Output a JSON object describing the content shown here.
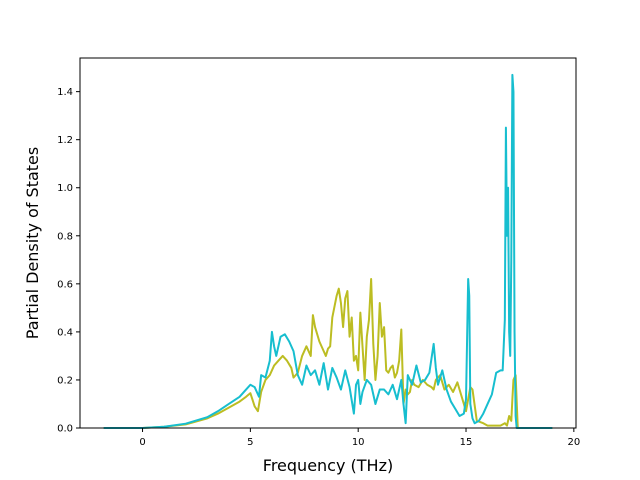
{
  "chart_data": {
    "type": "line",
    "title": "",
    "xlabel": "Frequency (THz)",
    "ylabel": "Partial Density of States",
    "xlim": [
      -2.9,
      20.1
    ],
    "ylim": [
      0.0,
      1.54
    ],
    "xticks": [
      0,
      5,
      10,
      15,
      20
    ],
    "yticks": [
      0.0,
      0.2,
      0.4,
      0.6,
      0.8,
      1.0,
      1.2,
      1.4
    ],
    "grid": false,
    "legend": "none",
    "series": [
      {
        "color": "#bcbd22",
        "x": [
          -1.8,
          0.0,
          1.0,
          2.0,
          3.0,
          3.5,
          4.0,
          4.5,
          4.8,
          5.0,
          5.2,
          5.35,
          5.5,
          5.7,
          5.9,
          6.1,
          6.3,
          6.5,
          6.7,
          6.9,
          7.0,
          7.2,
          7.4,
          7.6,
          7.8,
          7.9,
          8.0,
          8.2,
          8.4,
          8.5,
          8.6,
          8.7,
          8.8,
          9.0,
          9.1,
          9.2,
          9.3,
          9.4,
          9.5,
          9.6,
          9.7,
          9.8,
          9.9,
          10.0,
          10.1,
          10.2,
          10.3,
          10.4,
          10.5,
          10.6,
          10.7,
          10.8,
          10.9,
          11.0,
          11.1,
          11.2,
          11.3,
          11.4,
          11.5,
          11.6,
          11.7,
          11.8,
          11.9,
          12.0,
          12.1,
          12.2,
          12.3,
          12.4,
          12.5,
          12.6,
          12.8,
          13.0,
          13.2,
          13.4,
          13.5,
          13.6,
          13.8,
          14.0,
          14.2,
          14.4,
          14.6,
          14.8,
          15.0,
          15.1,
          15.2,
          15.3,
          15.5,
          15.8,
          16.0,
          16.2,
          16.4,
          16.6,
          16.8,
          16.9,
          17.0,
          17.1,
          17.15,
          17.2,
          17.3,
          17.4,
          17.6,
          18.0,
          19.0
        ],
        "y": [
          0.0,
          0.0,
          0.005,
          0.015,
          0.04,
          0.06,
          0.085,
          0.11,
          0.13,
          0.145,
          0.09,
          0.07,
          0.15,
          0.2,
          0.22,
          0.26,
          0.28,
          0.3,
          0.28,
          0.25,
          0.21,
          0.23,
          0.3,
          0.34,
          0.3,
          0.47,
          0.42,
          0.36,
          0.32,
          0.3,
          0.33,
          0.34,
          0.46,
          0.55,
          0.58,
          0.52,
          0.42,
          0.54,
          0.57,
          0.38,
          0.46,
          0.28,
          0.3,
          0.24,
          0.48,
          0.34,
          0.2,
          0.38,
          0.45,
          0.62,
          0.35,
          0.2,
          0.3,
          0.52,
          0.38,
          0.42,
          0.24,
          0.23,
          0.25,
          0.26,
          0.21,
          0.23,
          0.28,
          0.41,
          0.1,
          0.16,
          0.14,
          0.15,
          0.2,
          0.18,
          0.17,
          0.2,
          0.18,
          0.17,
          0.16,
          0.2,
          0.22,
          0.16,
          0.18,
          0.15,
          0.19,
          0.13,
          0.07,
          0.12,
          0.17,
          0.16,
          0.03,
          0.02,
          0.01,
          0.01,
          0.01,
          0.01,
          0.02,
          0.01,
          0.05,
          0.03,
          0.12,
          0.2,
          0.22,
          0.0,
          0.0,
          0.0,
          0.0
        ]
      },
      {
        "color": "#17becf",
        "x": [
          -1.8,
          0.0,
          1.0,
          2.0,
          3.0,
          3.5,
          4.0,
          4.5,
          4.8,
          5.0,
          5.2,
          5.4,
          5.5,
          5.7,
          5.9,
          6.0,
          6.1,
          6.2,
          6.4,
          6.6,
          6.8,
          7.0,
          7.2,
          7.4,
          7.6,
          7.8,
          8.0,
          8.2,
          8.4,
          8.6,
          8.8,
          9.0,
          9.2,
          9.4,
          9.6,
          9.8,
          9.9,
          10.0,
          10.1,
          10.2,
          10.4,
          10.6,
          10.8,
          11.0,
          11.2,
          11.4,
          11.6,
          11.8,
          12.0,
          12.1,
          12.2,
          12.3,
          12.5,
          12.7,
          12.9,
          13.1,
          13.3,
          13.5,
          13.6,
          13.7,
          13.9,
          14.1,
          14.3,
          14.5,
          14.7,
          14.9,
          15.0,
          15.1,
          15.15,
          15.2,
          15.3,
          15.4,
          15.6,
          15.8,
          16.0,
          16.2,
          16.4,
          16.6,
          16.7,
          16.8,
          16.85,
          16.9,
          16.95,
          17.0,
          17.05,
          17.1,
          17.15,
          17.2,
          17.25,
          17.3,
          17.35,
          17.4,
          17.5,
          18.0,
          19.0
        ],
        "y": [
          0.0,
          0.0,
          0.005,
          0.018,
          0.045,
          0.07,
          0.1,
          0.13,
          0.16,
          0.18,
          0.17,
          0.13,
          0.22,
          0.21,
          0.28,
          0.4,
          0.34,
          0.3,
          0.38,
          0.39,
          0.36,
          0.32,
          0.22,
          0.18,
          0.26,
          0.22,
          0.24,
          0.18,
          0.27,
          0.16,
          0.25,
          0.21,
          0.16,
          0.24,
          0.17,
          0.06,
          0.18,
          0.2,
          0.1,
          0.15,
          0.2,
          0.18,
          0.1,
          0.16,
          0.16,
          0.14,
          0.18,
          0.12,
          0.2,
          0.1,
          0.02,
          0.22,
          0.18,
          0.26,
          0.19,
          0.2,
          0.23,
          0.35,
          0.25,
          0.18,
          0.24,
          0.16,
          0.11,
          0.08,
          0.05,
          0.06,
          0.12,
          0.62,
          0.55,
          0.1,
          0.04,
          0.02,
          0.03,
          0.06,
          0.1,
          0.14,
          0.23,
          0.24,
          0.24,
          0.45,
          1.25,
          0.8,
          1.0,
          0.4,
          0.3,
          0.7,
          1.47,
          1.4,
          0.4,
          0.05,
          0.0,
          0.0,
          0.0,
          0.0,
          0.0
        ]
      }
    ]
  }
}
